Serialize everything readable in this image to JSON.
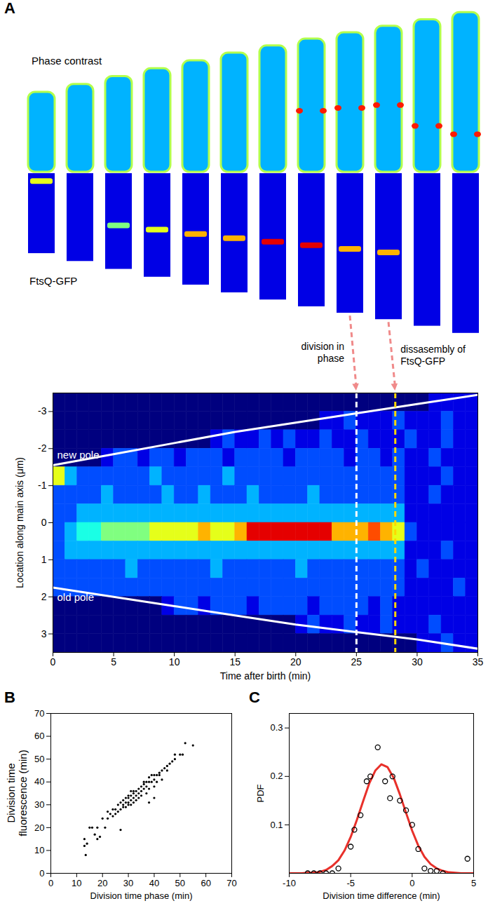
{
  "chart_data": [
    {
      "panel": "A",
      "type": "heatmap",
      "image_labels": [
        "Phase contrast",
        "FtsQ-GFP"
      ],
      "x_label": "Time after birth (min)",
      "y_label": "Location along main axis (μm)",
      "xlim": [
        0,
        35
      ],
      "xticks": [
        0,
        5,
        10,
        15,
        20,
        25,
        30,
        35
      ],
      "ylim": [
        -3.5,
        3.5
      ],
      "yticks": [
        -3,
        -2,
        -1,
        0,
        1,
        2,
        3
      ],
      "x": [
        0.5,
        1.5,
        2.5,
        3.5,
        4.5,
        5.5,
        6.5,
        7.5,
        8.5,
        9.5,
        10.5,
        11.5,
        12.5,
        13.5,
        14.5,
        15.5,
        16.5,
        17.5,
        18.5,
        19.5,
        20.5,
        21.5,
        22.5,
        23.5,
        24.5,
        25.5,
        26.5,
        27.5,
        28.5,
        29.5,
        30.5,
        31.5,
        32.5,
        33.5,
        34.5
      ],
      "y": [
        -3.25,
        -2.75,
        -2.25,
        -1.75,
        -1.25,
        -0.75,
        -0.25,
        0.25,
        0.75,
        1.25,
        1.75,
        2.25,
        2.75,
        3.25
      ],
      "color_range": [
        0,
        10
      ],
      "cells": [
        [
          0,
          0,
          0,
          0,
          0,
          0,
          0,
          0,
          0,
          0,
          0,
          0,
          0,
          0,
          0,
          0,
          0,
          0,
          0,
          0,
          0,
          0,
          0,
          0,
          0,
          0,
          0,
          0,
          0,
          0,
          0,
          1,
          1,
          1,
          1
        ],
        [
          0,
          0,
          0,
          0,
          0,
          0,
          0,
          0,
          0,
          0,
          0,
          0,
          0,
          0,
          0,
          0,
          0,
          0,
          0,
          0,
          0,
          0,
          1,
          1,
          2,
          1,
          1,
          1,
          2,
          1,
          1,
          1,
          2,
          1,
          1
        ],
        [
          0,
          0,
          0,
          0,
          0,
          0,
          0,
          0,
          0,
          0,
          0,
          0,
          0,
          1,
          2,
          1,
          1,
          2,
          1,
          2,
          1,
          1,
          2,
          1,
          1,
          2,
          1,
          1,
          1,
          2,
          1,
          1,
          2,
          1,
          1
        ],
        [
          0,
          0,
          0,
          0,
          1,
          2,
          2,
          1,
          2,
          2,
          1,
          2,
          2,
          2,
          1,
          2,
          2,
          2,
          2,
          1,
          2,
          2,
          2,
          2,
          1,
          2,
          2,
          1,
          2,
          1,
          1,
          2,
          1,
          1,
          1
        ],
        [
          6,
          3,
          2,
          2,
          2,
          2,
          2,
          2,
          3,
          2,
          2,
          2,
          2,
          2,
          3,
          2,
          2,
          2,
          2,
          2,
          2,
          2,
          2,
          2,
          2,
          2,
          2,
          2,
          2,
          1,
          1,
          1,
          2,
          1,
          1
        ],
        [
          2,
          2,
          2,
          2,
          3,
          2,
          2,
          2,
          2,
          3,
          2,
          2,
          3,
          2,
          2,
          2,
          3,
          2,
          2,
          2,
          2,
          3,
          2,
          2,
          2,
          2,
          2,
          2,
          2,
          1,
          1,
          2,
          1,
          1,
          1
        ],
        [
          2,
          2,
          3,
          3,
          3,
          3,
          3,
          3,
          3,
          3,
          3,
          3,
          3,
          3,
          3,
          3,
          3,
          3,
          3,
          3,
          3,
          3,
          3,
          3,
          3,
          3,
          3,
          3,
          3,
          1,
          1,
          1,
          1,
          1,
          1
        ],
        [
          2,
          3,
          4,
          4,
          5,
          5,
          5,
          5,
          6,
          6,
          6,
          6,
          7,
          6,
          6,
          7,
          9,
          9,
          9,
          9,
          9,
          9,
          9,
          7,
          7,
          7,
          8,
          7,
          6,
          2,
          1,
          1,
          1,
          1,
          1
        ],
        [
          2,
          3,
          3,
          3,
          3,
          3,
          3,
          3,
          3,
          3,
          3,
          3,
          3,
          3,
          3,
          3,
          3,
          3,
          3,
          3,
          3,
          3,
          3,
          3,
          3,
          3,
          3,
          3,
          3,
          1,
          1,
          1,
          2,
          1,
          1
        ],
        [
          2,
          2,
          2,
          2,
          2,
          2,
          3,
          2,
          2,
          2,
          2,
          2,
          2,
          3,
          2,
          2,
          2,
          2,
          2,
          2,
          3,
          2,
          2,
          2,
          2,
          2,
          2,
          2,
          2,
          1,
          2,
          1,
          1,
          1,
          1
        ],
        [
          2,
          2,
          2,
          2,
          2,
          2,
          2,
          2,
          2,
          2,
          2,
          2,
          2,
          2,
          2,
          2,
          2,
          2,
          2,
          2,
          2,
          2,
          2,
          2,
          2,
          2,
          2,
          2,
          2,
          1,
          1,
          1,
          1,
          2,
          1
        ],
        [
          0,
          0,
          0,
          0,
          0,
          0,
          0,
          0,
          0,
          1,
          2,
          2,
          1,
          2,
          2,
          2,
          1,
          2,
          2,
          2,
          2,
          1,
          2,
          2,
          2,
          2,
          1,
          2,
          1,
          1,
          1,
          1,
          1,
          1,
          1
        ],
        [
          0,
          0,
          0,
          0,
          0,
          0,
          0,
          0,
          0,
          0,
          0,
          0,
          0,
          0,
          0,
          0,
          0,
          0,
          0,
          0,
          1,
          2,
          1,
          1,
          2,
          1,
          1,
          2,
          1,
          1,
          1,
          2,
          1,
          1,
          1
        ],
        [
          0,
          0,
          0,
          0,
          0,
          0,
          0,
          0,
          0,
          0,
          0,
          0,
          0,
          0,
          0,
          0,
          0,
          0,
          0,
          0,
          0,
          0,
          0,
          0,
          0,
          0,
          0,
          0,
          0,
          0,
          1,
          1,
          2,
          1,
          1
        ]
      ],
      "poles": [
        {
          "name": "new pole",
          "color": "#ffffff",
          "x": [
            0,
            5,
            10,
            15,
            20,
            25,
            30,
            35
          ],
          "values": [
            -1.55,
            -1.85,
            -2.15,
            -2.45,
            -2.7,
            -2.95,
            -3.2,
            -3.45
          ]
        },
        {
          "name": "old pole",
          "color": "#ffffff",
          "x": [
            0,
            5,
            10,
            15,
            20,
            25,
            30,
            35
          ],
          "values": [
            1.75,
            2.0,
            2.25,
            2.5,
            2.75,
            2.95,
            3.15,
            3.4
          ]
        }
      ],
      "events": [
        {
          "label": "division in phase",
          "time": 25,
          "color": "#ffffff"
        },
        {
          "label": "dissasembly of FtsQ-GFP",
          "time": 28.2,
          "color": "#ffd700"
        }
      ]
    },
    {
      "panel": "B",
      "type": "scatter",
      "x_label": "Division time phase (min)",
      "y_label": "Division time fluorescence (min)",
      "xlim": [
        0,
        70
      ],
      "xticks": [
        0,
        10,
        20,
        30,
        40,
        50,
        60,
        70
      ],
      "ylim": [
        0,
        70
      ],
      "yticks": [
        0,
        10,
        20,
        30,
        40,
        50,
        60,
        70
      ],
      "color": "#000000",
      "marker": "dot",
      "x": [
        13,
        13,
        13.5,
        14,
        15,
        16,
        17,
        18,
        18,
        19,
        20,
        21,
        22,
        22,
        23,
        24,
        24,
        25,
        25,
        26,
        26,
        27,
        27,
        27,
        28,
        28,
        28,
        29,
        29,
        29,
        30,
        30,
        30,
        30,
        31,
        31,
        31,
        31,
        32,
        32,
        32,
        32,
        33,
        33,
        33,
        34,
        34,
        34,
        35,
        35,
        35,
        36,
        36,
        36,
        37,
        37,
        37,
        38,
        38,
        38,
        39,
        39,
        40,
        40,
        40,
        41,
        41,
        42,
        42,
        43,
        43,
        44,
        45,
        45,
        46,
        47,
        48,
        48,
        50,
        51,
        52,
        55,
        40,
        38
      ],
      "values": [
        15,
        12,
        8,
        13,
        20,
        20,
        17,
        20,
        15,
        16,
        24,
        20,
        27,
        24,
        26,
        28,
        25,
        28,
        26,
        27,
        30,
        28,
        31,
        19,
        30,
        29,
        32,
        29,
        31,
        33,
        31,
        33,
        30,
        34,
        32,
        34,
        30,
        36,
        33,
        35,
        31,
        36,
        34,
        36,
        32,
        35,
        33,
        37,
        36,
        38,
        34,
        37,
        39,
        40,
        38,
        40,
        35,
        40,
        42,
        37,
        40,
        43,
        41,
        43,
        38,
        43,
        40,
        44,
        43,
        41,
        45,
        46,
        47,
        45,
        48,
        49,
        52,
        50,
        52,
        52,
        57,
        56,
        33,
        31
      ]
    },
    {
      "panel": "C",
      "type": "scatter",
      "x_label": "Division time difference (min)",
      "y_label": "PDF",
      "xlim": [
        -10,
        5
      ],
      "xticks": [
        -10,
        -5,
        0,
        5
      ],
      "ylim": [
        0,
        0.33
      ],
      "yticks": [
        0.1,
        0.2,
        0.3
      ],
      "color": "#000000",
      "marker": "circle",
      "x": [
        -8.5,
        -8,
        -7.5,
        -7,
        -6.5,
        -6,
        -5,
        -4.7,
        -4.2,
        -3.7,
        -3.4,
        -2.8,
        -2.2,
        -1.8,
        -1.6,
        -1,
        -0.5,
        0,
        0.5,
        1,
        1.5,
        2,
        2.5,
        4.5
      ],
      "values": [
        0,
        0,
        0,
        0,
        0,
        0.01,
        0.055,
        0.09,
        0.12,
        0.19,
        0.2,
        0.26,
        0.19,
        0.155,
        0.2,
        0.15,
        0.13,
        0.1,
        0.05,
        0.01,
        0.005,
        0.005,
        0,
        0.03
      ],
      "fit": {
        "type": "line",
        "color": "#e8302a",
        "x": [
          -10,
          -9.5,
          -9,
          -8.5,
          -8,
          -7.5,
          -7,
          -6.5,
          -6,
          -5.5,
          -5,
          -4.5,
          -4,
          -3.5,
          -3,
          -2.5,
          -2,
          -1.5,
          -1,
          -0.5,
          0,
          0.5,
          1,
          1.5,
          2,
          2.5,
          3,
          3.5,
          4,
          4.5,
          5
        ],
        "values": [
          0,
          0,
          0,
          0.001,
          0.001,
          0.003,
          0.007,
          0.015,
          0.027,
          0.047,
          0.075,
          0.11,
          0.148,
          0.185,
          0.212,
          0.225,
          0.219,
          0.197,
          0.163,
          0.125,
          0.088,
          0.057,
          0.034,
          0.019,
          0.01,
          0.005,
          0.002,
          0.001,
          0,
          0,
          0
        ]
      }
    }
  ]
}
